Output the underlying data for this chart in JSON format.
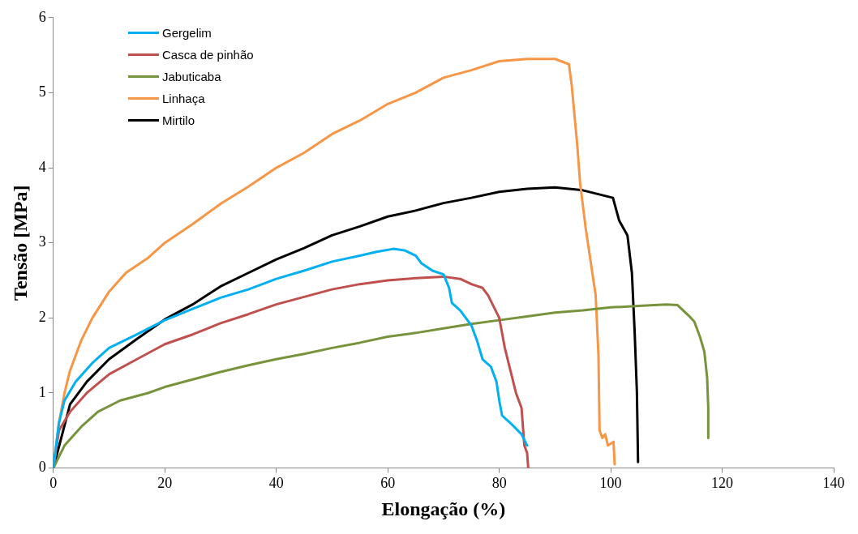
{
  "chart_data": {
    "type": "line",
    "xlabel": "Elongação (%)",
    "ylabel": "Tensão [MPa]",
    "xlim": [
      0,
      140
    ],
    "xticks": [
      0,
      20,
      40,
      60,
      80,
      100,
      120,
      140
    ],
    "ylim": [
      0,
      6
    ],
    "yticks": [
      0,
      1,
      2,
      3,
      4,
      5,
      6
    ],
    "grid": false,
    "legend": "top left",
    "marker": "none",
    "line_style": "solid",
    "series": [
      {
        "name": "Gergelim",
        "color": "#00b0f0",
        "x": [
          0,
          1,
          2,
          4,
          7,
          10,
          15,
          20,
          25,
          30,
          35,
          40,
          45,
          50,
          55,
          58,
          61,
          63,
          65,
          66,
          68,
          70,
          71,
          71.5,
          73,
          75,
          76,
          77,
          78.5,
          79.5,
          80,
          80.5,
          82,
          84,
          85
        ],
        "values": [
          0,
          0.6,
          0.9,
          1.15,
          1.4,
          1.6,
          1.78,
          1.97,
          2.12,
          2.27,
          2.38,
          2.52,
          2.63,
          2.75,
          2.83,
          2.88,
          2.92,
          2.9,
          2.83,
          2.73,
          2.63,
          2.58,
          2.4,
          2.2,
          2.1,
          1.9,
          1.7,
          1.45,
          1.35,
          1.15,
          0.9,
          0.7,
          0.6,
          0.45,
          0.3
        ]
      },
      {
        "name": "Casca de pinhão",
        "color": "#c0504d",
        "x": [
          0,
          1,
          3,
          6,
          10,
          15,
          20,
          25,
          30,
          35,
          40,
          45,
          50,
          55,
          60,
          65,
          70,
          73,
          75,
          77,
          78,
          79,
          80,
          81,
          82,
          83,
          84,
          84.5,
          85,
          85.2
        ],
        "values": [
          0,
          0.5,
          0.75,
          1.0,
          1.25,
          1.45,
          1.65,
          1.78,
          1.93,
          2.05,
          2.18,
          2.28,
          2.38,
          2.45,
          2.5,
          2.53,
          2.55,
          2.52,
          2.45,
          2.4,
          2.3,
          2.15,
          2.0,
          1.6,
          1.3,
          1.0,
          0.8,
          0.3,
          0.2,
          0
        ]
      },
      {
        "name": "Jabuticaba",
        "color": "#77933c",
        "x": [
          0,
          2,
          5,
          8,
          12,
          17,
          20,
          25,
          30,
          35,
          40,
          45,
          50,
          55,
          60,
          65,
          70,
          75,
          80,
          85,
          90,
          95,
          100,
          105,
          110,
          112,
          113,
          114,
          115,
          116,
          116.8,
          117.3,
          117.5,
          117.5
        ],
        "values": [
          0,
          0.3,
          0.55,
          0.75,
          0.9,
          1.0,
          1.08,
          1.18,
          1.28,
          1.37,
          1.45,
          1.52,
          1.6,
          1.67,
          1.75,
          1.8,
          1.86,
          1.92,
          1.97,
          2.02,
          2.07,
          2.1,
          2.14,
          2.16,
          2.18,
          2.17,
          2.1,
          2.03,
          1.95,
          1.75,
          1.55,
          1.2,
          0.8,
          0.4
        ]
      },
      {
        "name": "Linhaça",
        "color": "#f79646",
        "x": [
          0,
          1,
          2,
          3,
          5,
          7,
          10,
          13,
          17,
          20,
          25,
          30,
          35,
          40,
          45,
          50,
          55,
          60,
          65,
          70,
          75,
          80,
          85,
          90,
          92.5,
          93,
          93.5,
          94,
          94.5,
          95.5,
          96.5,
          97.3,
          97.8,
          98,
          98.5,
          99,
          99.5,
          100.5,
          100.7
        ],
        "values": [
          0,
          0.6,
          1.0,
          1.3,
          1.7,
          2.0,
          2.35,
          2.6,
          2.8,
          3.0,
          3.25,
          3.52,
          3.75,
          4.0,
          4.2,
          4.45,
          4.63,
          4.85,
          5.0,
          5.2,
          5.3,
          5.42,
          5.45,
          5.45,
          5.38,
          5.1,
          4.7,
          4.3,
          3.8,
          3.2,
          2.7,
          2.3,
          1.5,
          0.5,
          0.4,
          0.45,
          0.3,
          0.35,
          0.05
        ]
      },
      {
        "name": "Mirtilo",
        "color": "#000000",
        "x": [
          0,
          3,
          6,
          10,
          15,
          20,
          25,
          30,
          35,
          40,
          45,
          50,
          55,
          60,
          65,
          70,
          75,
          80,
          85,
          90,
          95,
          100.4,
          101.5,
          103,
          103.8,
          104.3,
          104.7,
          104.9
        ],
        "values": [
          0,
          0.85,
          1.15,
          1.45,
          1.72,
          1.98,
          2.18,
          2.42,
          2.6,
          2.78,
          2.93,
          3.1,
          3.22,
          3.35,
          3.43,
          3.53,
          3.6,
          3.68,
          3.72,
          3.74,
          3.7,
          3.6,
          3.3,
          3.1,
          2.6,
          1.8,
          1.0,
          0.08
        ]
      }
    ]
  }
}
